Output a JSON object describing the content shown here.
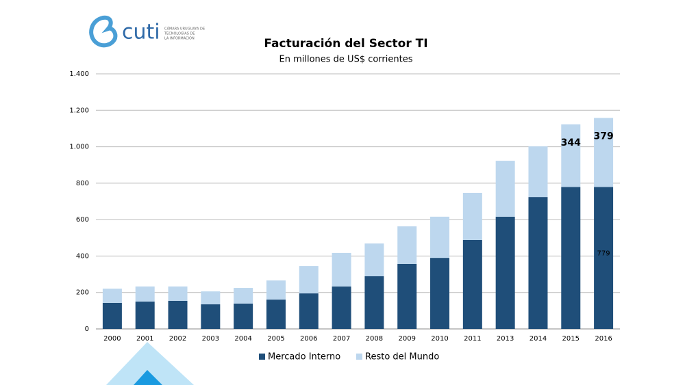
{
  "logo": {
    "name": "cuti",
    "tagline": [
      "CÁMARA URUGUAYA DE",
      "TECNOLOGÍAS DE",
      "LA INFORMACIÓN"
    ]
  },
  "chart_data": {
    "type": "stacked-bar",
    "title": "Facturación del Sector TI",
    "subtitle": "En millones de US$ corrientes",
    "categories": [
      "2000",
      "2001",
      "2002",
      "2003",
      "2004",
      "2005",
      "2006",
      "2007",
      "2008",
      "2009",
      "2010",
      "2011",
      "2013",
      "2014",
      "2015",
      "2016"
    ],
    "series": [
      {
        "name": "Mercado Interno",
        "color": "#1f4e79",
        "values": [
          143,
          150,
          154,
          135,
          139,
          161,
          195,
          233,
          289,
          357,
          390,
          488,
          616,
          724,
          779,
          779
        ],
        "value_labels": [
          null,
          null,
          null,
          null,
          null,
          null,
          null,
          null,
          null,
          null,
          null,
          null,
          null,
          null,
          null,
          "779"
        ]
      },
      {
        "name": "Resto del Mundo",
        "color": "#bdd7ee",
        "values": [
          78,
          83,
          79,
          71,
          86,
          105,
          150,
          184,
          180,
          206,
          226,
          259,
          307,
          278,
          344,
          379
        ],
        "value_labels": [
          null,
          null,
          null,
          null,
          null,
          null,
          null,
          null,
          null,
          null,
          null,
          null,
          null,
          null,
          "344",
          "379"
        ]
      }
    ],
    "ylim": [
      0,
      1400
    ],
    "yticks": [
      0,
      200,
      400,
      600,
      800,
      {
        "value": 1000,
        "label": "1.000"
      },
      {
        "value": 1200,
        "label": "1.200"
      },
      {
        "value": 1400,
        "label": "1.400"
      }
    ],
    "grid": true,
    "legend": "bottom"
  }
}
